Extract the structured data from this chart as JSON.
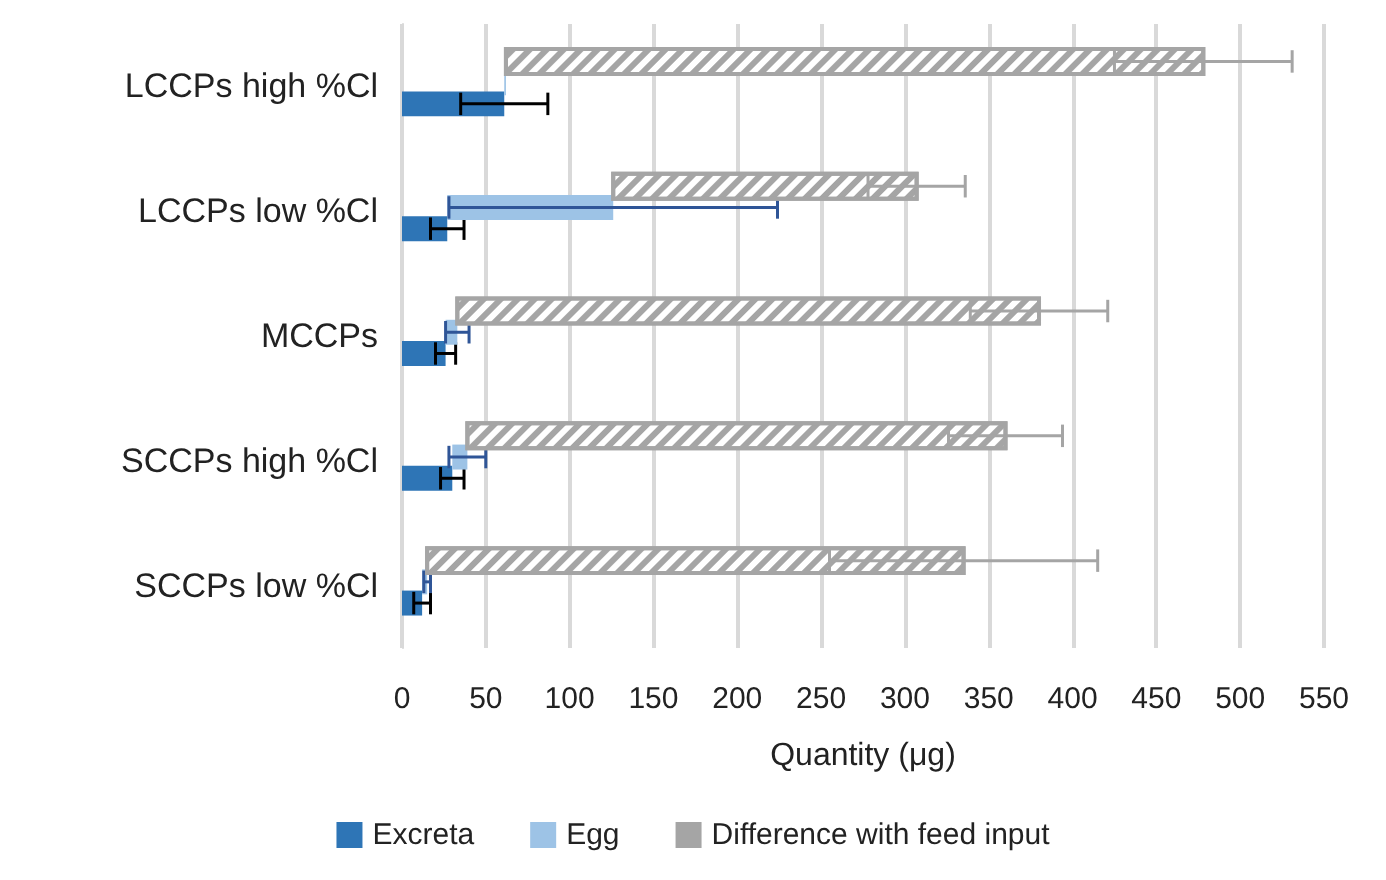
{
  "chart_data": {
    "type": "bar",
    "orientation": "horizontal",
    "xlabel": "Quantity (μg)",
    "categories": [
      "LCCPs high %Cl",
      "LCCPs low %Cl",
      "MCCPs",
      "SCCPs high %Cl",
      "SCCPs low %Cl"
    ],
    "series": [
      {
        "name": "Excreta",
        "color": "#2e75b6",
        "values": [
          61,
          27,
          26,
          30,
          12
        ],
        "errors": [
          26,
          10,
          6,
          7,
          5
        ]
      },
      {
        "name": "Egg",
        "color": "#9dc3e6",
        "values": [
          1,
          99,
          7,
          9,
          3
        ],
        "base": [
          61,
          27,
          26,
          30,
          12
        ],
        "errors": [
          null,
          98,
          7,
          11,
          2
        ]
      },
      {
        "name": "Difference with feed input",
        "color": "#a5a5a5",
        "values": [
          416,
          181,
          347,
          321,
          320
        ],
        "base": [
          62,
          126,
          33,
          39,
          15
        ],
        "errors": [
          53,
          29,
          41,
          34,
          80
        ]
      }
    ],
    "xlim": [
      0,
      550
    ],
    "xticks": [
      0,
      50,
      100,
      150,
      200,
      250,
      300,
      350,
      400,
      450,
      500,
      550
    ],
    "grid": "x",
    "legend": "bottom"
  }
}
